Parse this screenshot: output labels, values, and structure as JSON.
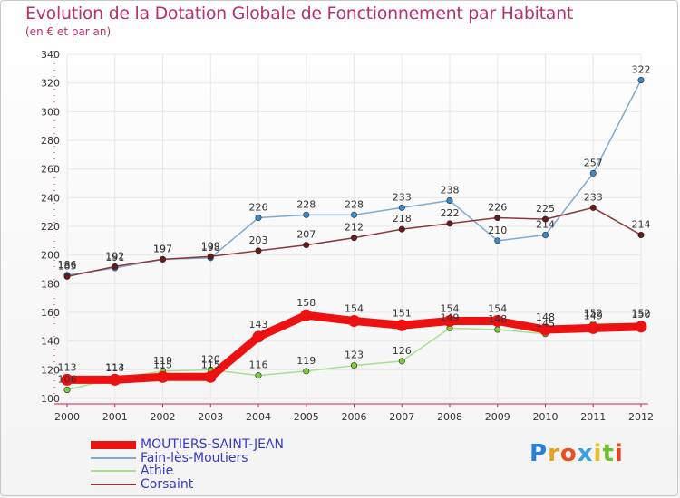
{
  "title": "Evolution de la Dotation Globale de Fonctionnement par Habitant",
  "subtitle": "(en € et par an)",
  "logo_text": "Proxiti",
  "colors": {
    "title": "#b5316b",
    "axis": "#d02060",
    "grid": "#e8e8e8",
    "legend_text": "#3838c8"
  },
  "chart_data": {
    "type": "line",
    "title": "Evolution de la Dotation Globale de Fonctionnement par Habitant",
    "subtitle": "(en € et par an)",
    "categories": [
      "2000",
      "2001",
      "2002",
      "2003",
      "2004",
      "2005",
      "2006",
      "2007",
      "2008",
      "2009",
      "2010",
      "2011",
      "2012"
    ],
    "ylim": [
      100,
      340
    ],
    "yticks": [
      100,
      120,
      140,
      160,
      180,
      200,
      220,
      240,
      260,
      280,
      300,
      320,
      340
    ],
    "grid": true,
    "legend_position": "bottom-left",
    "series": [
      {
        "name": "MOUTIERS-SAINT-JEAN",
        "color": "#ee1111",
        "marker_color": "#ee1111",
        "width": 9,
        "values": [
          113,
          113,
          115,
          115,
          143,
          158,
          154,
          151,
          154,
          154,
          148,
          149,
          150
        ],
        "labels": [
          "113",
          "113",
          "115",
          "115",
          "143",
          "158",
          "154",
          "151",
          "154",
          "154",
          "148",
          "149",
          "150"
        ]
      },
      {
        "name": "Fain-lès-Moutiers",
        "color": "#7faad0",
        "marker_color": "#3a8ad0",
        "width": 1.5,
        "values": [
          186,
          191,
          197,
          198,
          226,
          228,
          228,
          233,
          238,
          210,
          214,
          257,
          322
        ],
        "labels": [
          "186",
          "191",
          "197",
          "198",
          "226",
          "228",
          "228",
          "233",
          "238",
          "210",
          "214",
          "257",
          "322"
        ]
      },
      {
        "name": "Athie",
        "color": "#a8e090",
        "marker_color": "#7ad03a",
        "width": 1.5,
        "values": [
          106,
          114,
          119,
          120,
          116,
          119,
          123,
          126,
          149,
          148,
          145,
          152,
          152
        ],
        "labels": [
          "106",
          "114",
          "119",
          "120",
          "116",
          "119",
          "123",
          "126",
          "149",
          "148",
          "145",
          "152",
          "152"
        ]
      },
      {
        "name": "Corsaint",
        "color": "#8a3a3a",
        "marker_color": "#6a1a1a",
        "width": 1.5,
        "values": [
          185,
          192,
          197,
          199,
          203,
          207,
          212,
          218,
          222,
          226,
          225,
          233,
          214
        ],
        "labels": [
          "185",
          "192",
          "197",
          "199",
          "203",
          "207",
          "212",
          "218",
          "222",
          "226",
          "225",
          "233",
          "214"
        ]
      }
    ]
  }
}
